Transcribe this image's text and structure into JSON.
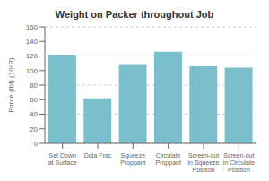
{
  "chart_data": {
    "type": "bar",
    "title": "Weight on Packer throughout Job",
    "ylabel": "Force (lbf) (10^3)",
    "categories": [
      "Set Down\nat Surface",
      "Data Frac",
      "Squeeze\nProppant",
      "Circulate\nProppant",
      "Screen-out\nin Squeeze\nPosition",
      "Screen-out\nin Circulate\nPosition"
    ],
    "values": [
      122,
      62,
      109,
      126,
      106,
      104
    ],
    "color": "#7bbfcc",
    "ylim": [
      0,
      160
    ],
    "yticks": [
      0,
      20,
      40,
      60,
      80,
      100,
      120,
      140,
      160
    ],
    "grid": true
  }
}
